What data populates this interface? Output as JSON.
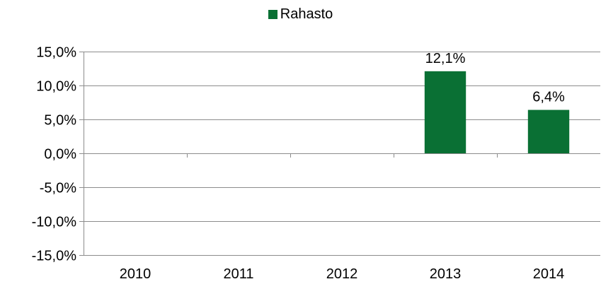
{
  "chart_data": {
    "type": "bar",
    "categories": [
      "2010",
      "2011",
      "2012",
      "2013",
      "2014"
    ],
    "series": [
      {
        "name": "Rahasto",
        "values": [
          null,
          null,
          null,
          12.1,
          6.4
        ],
        "labels": [
          "",
          "",
          "",
          "12,1%",
          "6,4%"
        ],
        "color": "#0a7034"
      }
    ],
    "ylim": [
      -15,
      15
    ],
    "yticks": [
      15,
      10,
      5,
      0,
      -5,
      -10,
      -15
    ],
    "ytick_labels": [
      "15,0%",
      "10,0%",
      "5,0%",
      "0,0%",
      "-5,0%",
      "-10,0%",
      "-15,0%"
    ],
    "grid": true,
    "legend_position": "top-center",
    "title": "",
    "xlabel": "",
    "ylabel": ""
  }
}
